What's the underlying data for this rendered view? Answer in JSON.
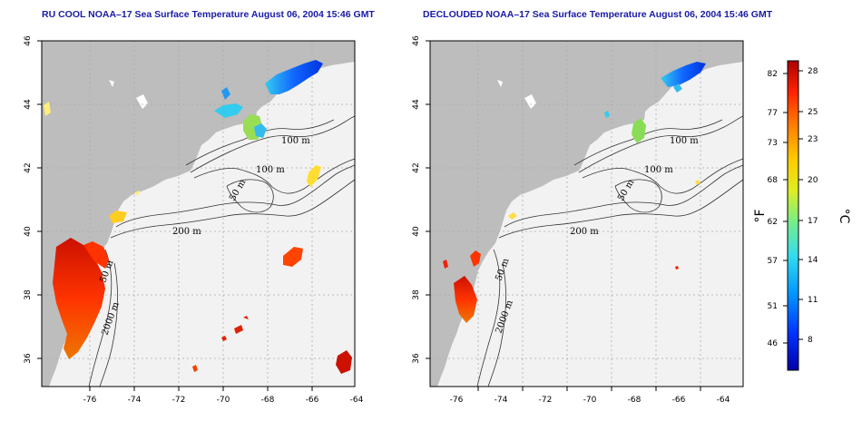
{
  "titles": {
    "left": "RU COOL NOAA–17 Sea Surface Temperature August 06, 2004 15:46 GMT",
    "right": "DECLOUDED NOAA–17 Sea Surface Temperature August 06, 2004 15:46 GMT"
  },
  "axes": {
    "lon_ticks": [
      "-76",
      "-74",
      "-72",
      "-70",
      "-68",
      "-66",
      "-64"
    ],
    "lat_ticks": [
      "46",
      "44",
      "42",
      "40",
      "38",
      "36"
    ],
    "lon_range": [
      -77.2,
      -63.1
    ],
    "lat_range": [
      35.0,
      46.1
    ]
  },
  "contours": {
    "left": [
      "100 m",
      "100 m",
      "50 m",
      "200 m",
      "50 m",
      "2000 m"
    ],
    "right": [
      "100 m",
      "100 m",
      "50 m",
      "200 m",
      "50 m",
      "2000 m"
    ]
  },
  "colorbar": {
    "fahrenheit_label": "°F",
    "celsius_label": "°C",
    "fahrenheit_ticks": [
      "82",
      "77",
      "73",
      "68",
      "62",
      "57",
      "51",
      "46"
    ],
    "celsius_ticks": [
      "28",
      "25",
      "23",
      "20",
      "17",
      "14",
      "11",
      "8"
    ],
    "colors": [
      "#0000aa",
      "#0033ff",
      "#0099ff",
      "#33ddee",
      "#77ee88",
      "#ddee22",
      "#ffcc00",
      "#ff7700",
      "#ff2200",
      "#aa0000"
    ]
  },
  "colors": {
    "land": "#bdbdbd",
    "ocean": "#f2f2f2",
    "title": "#1a1aa8"
  }
}
